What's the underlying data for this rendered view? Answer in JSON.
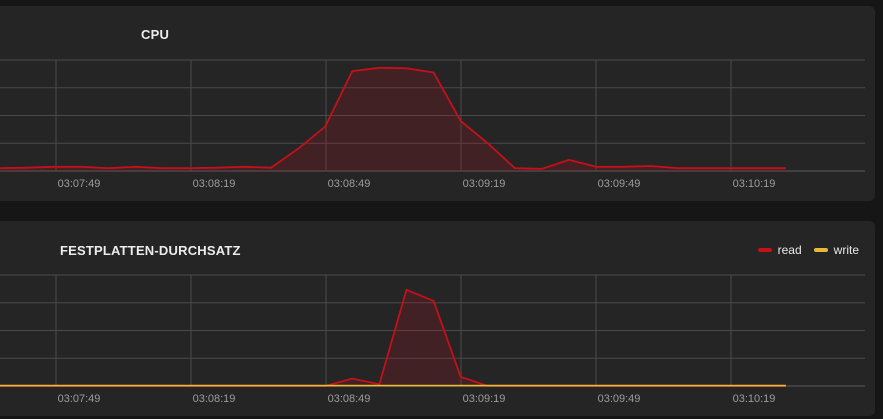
{
  "colors": {
    "read": "#c4101a",
    "write": "#e8b83a",
    "grid": "#4a4a4a",
    "fill": "#c4101a"
  },
  "chart_data": [
    {
      "type": "area",
      "title": "CPU",
      "x_ticks": [
        "03:07:49",
        "03:08:19",
        "03:08:49",
        "03:09:19",
        "03:09:49",
        "03:10:19"
      ],
      "xlim": [
        0,
        29
      ],
      "ylim": [
        0,
        4
      ],
      "grid": true,
      "legend": null,
      "series": [
        {
          "color": "#c4101a",
          "x": [
            0,
            1,
            2,
            3,
            4,
            5,
            6,
            7,
            8,
            9,
            10,
            11,
            12,
            13,
            14,
            15,
            16,
            17,
            18,
            19,
            20,
            21,
            22,
            23,
            24,
            25,
            26,
            27,
            28,
            29
          ],
          "values": [
            0.1,
            0.12,
            0.15,
            0.15,
            0.1,
            0.15,
            0.1,
            0.1,
            0.12,
            0.15,
            0.12,
            0.8,
            1.6,
            3.6,
            3.72,
            3.7,
            3.55,
            1.8,
            1.0,
            0.1,
            0.08,
            0.4,
            0.15,
            0.15,
            0.18,
            0.1,
            0.1,
            0.1,
            0.1,
            0.1
          ]
        }
      ]
    },
    {
      "type": "area",
      "title": "FESTPLATTEN-DURCHSATZ",
      "x_ticks": [
        "03:07:49",
        "03:08:19",
        "03:08:49",
        "03:09:19",
        "03:09:49",
        "03:10:19"
      ],
      "xlim": [
        0,
        29
      ],
      "ylim": [
        0,
        3
      ],
      "grid": true,
      "legend": "top-right",
      "series": [
        {
          "name": "read",
          "color": "#c4101a",
          "x": [
            0,
            1,
            2,
            3,
            4,
            5,
            6,
            7,
            8,
            9,
            10,
            11,
            12,
            13,
            14,
            15,
            16,
            17,
            18,
            19,
            20,
            21,
            22,
            23,
            24,
            25,
            26,
            27,
            28,
            29
          ],
          "values": [
            0,
            0,
            0,
            0,
            0,
            0,
            0,
            0,
            0,
            0,
            0,
            0,
            0,
            0.2,
            0.05,
            2.6,
            2.3,
            0.25,
            0,
            0,
            0,
            0,
            0,
            0,
            0,
            0,
            0,
            0,
            0,
            0
          ]
        },
        {
          "name": "write",
          "color": "#e8b83a",
          "x": [
            0,
            1,
            2,
            3,
            4,
            5,
            6,
            7,
            8,
            9,
            10,
            11,
            12,
            13,
            14,
            15,
            16,
            17,
            18,
            19,
            20,
            21,
            22,
            23,
            24,
            25,
            26,
            27,
            28,
            29
          ],
          "values": [
            0.01,
            0.01,
            0.01,
            0.01,
            0.01,
            0.01,
            0.01,
            0.01,
            0.01,
            0.01,
            0.01,
            0.01,
            0.01,
            0.01,
            0.01,
            0.01,
            0.01,
            0.01,
            0.01,
            0.01,
            0.01,
            0.01,
            0.01,
            0.01,
            0.01,
            0.01,
            0.01,
            0.01,
            0.01,
            0.01
          ]
        }
      ]
    }
  ]
}
